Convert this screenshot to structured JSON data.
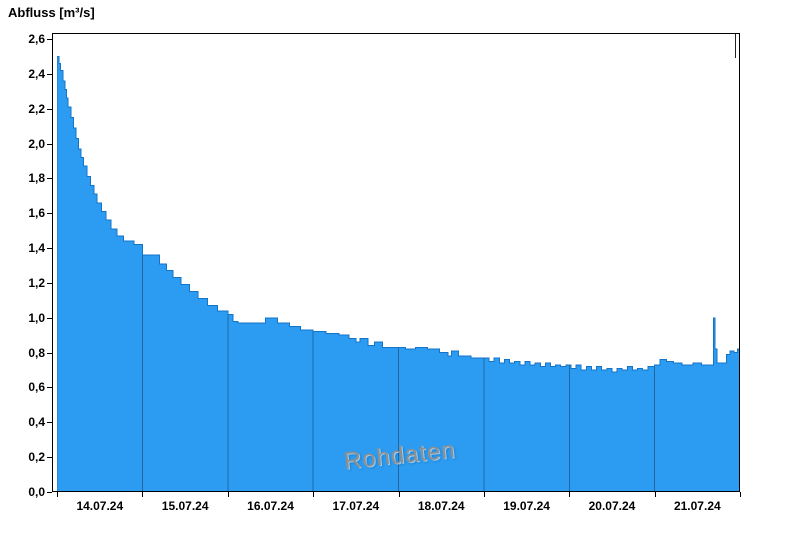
{
  "title": "Abfluss [m³/s]",
  "watermark": "Rohdaten",
  "colors": {
    "area_fill": "#2B9CF2",
    "area_stroke": "#1474C8",
    "grid_line": "rgba(28,60,95,0.55)",
    "frame": "#000000",
    "tick": "#000000",
    "watermark_text": "#8f8f8f",
    "label_text": "#000000"
  },
  "chart_data": {
    "type": "area",
    "title": "Abfluss [m³/s]",
    "ylabel": "Abfluss [m³/s]",
    "xlabel": "",
    "legend_position": "none",
    "grid": "vertical day-boundary lines visible inside filled area",
    "ylim": [
      0.0,
      2.6
    ],
    "y_ticks": [
      {
        "value": 0.0,
        "label": "0,0"
      },
      {
        "value": 0.2,
        "label": "0,2"
      },
      {
        "value": 0.4,
        "label": "0,4"
      },
      {
        "value": 0.6,
        "label": "0,6"
      },
      {
        "value": 0.8,
        "label": "0,8"
      },
      {
        "value": 1.0,
        "label": "1,0"
      },
      {
        "value": 1.2,
        "label": "1,2"
      },
      {
        "value": 1.4,
        "label": "1,4"
      },
      {
        "value": 1.6,
        "label": "1,6"
      },
      {
        "value": 1.8,
        "label": "1,8"
      },
      {
        "value": 2.0,
        "label": "2,0"
      },
      {
        "value": 2.2,
        "label": "2,2"
      },
      {
        "value": 2.4,
        "label": "2,4"
      },
      {
        "value": 2.6,
        "label": "2,6"
      }
    ],
    "x_domain_days": [
      -0.06,
      8.0
    ],
    "day_boundaries": [
      0,
      1,
      2,
      3,
      4,
      5,
      6,
      7,
      8
    ],
    "end_marker_day": 7.94,
    "x_ticks": [
      {
        "center_day": 0.5,
        "label": "14.07.24"
      },
      {
        "center_day": 1.5,
        "label": "15.07.24"
      },
      {
        "center_day": 2.5,
        "label": "16.07.24"
      },
      {
        "center_day": 3.5,
        "label": "17.07.24"
      },
      {
        "center_day": 4.5,
        "label": "18.07.24"
      },
      {
        "center_day": 5.5,
        "label": "19.07.24"
      },
      {
        "center_day": 6.5,
        "label": "20.07.24"
      },
      {
        "center_day": 7.5,
        "label": "21.07.24"
      }
    ],
    "series": [
      {
        "name": "Rohdaten",
        "unit": "m³/s",
        "points": [
          [
            0.0,
            2.5
          ],
          [
            0.02,
            2.46
          ],
          [
            0.04,
            2.42
          ],
          [
            0.07,
            2.36
          ],
          [
            0.09,
            2.31
          ],
          [
            0.11,
            2.26
          ],
          [
            0.13,
            2.21
          ],
          [
            0.16,
            2.15
          ],
          [
            0.19,
            2.09
          ],
          [
            0.22,
            2.03
          ],
          [
            0.25,
            1.97
          ],
          [
            0.28,
            1.92
          ],
          [
            0.31,
            1.87
          ],
          [
            0.35,
            1.81
          ],
          [
            0.39,
            1.76
          ],
          [
            0.43,
            1.71
          ],
          [
            0.47,
            1.66
          ],
          [
            0.52,
            1.61
          ],
          [
            0.57,
            1.56
          ],
          [
            0.63,
            1.51
          ],
          [
            0.7,
            1.47
          ],
          [
            0.78,
            1.44
          ],
          [
            0.9,
            1.42
          ],
          [
            1.0,
            1.36
          ],
          [
            1.16,
            1.36
          ],
          [
            1.2,
            1.31
          ],
          [
            1.28,
            1.27
          ],
          [
            1.36,
            1.23
          ],
          [
            1.45,
            1.19
          ],
          [
            1.55,
            1.15
          ],
          [
            1.65,
            1.11
          ],
          [
            1.76,
            1.07
          ],
          [
            1.88,
            1.04
          ],
          [
            2.0,
            1.02
          ],
          [
            2.06,
            0.98
          ],
          [
            2.12,
            0.97
          ],
          [
            2.44,
            1.0
          ],
          [
            2.58,
            0.97
          ],
          [
            2.72,
            0.95
          ],
          [
            2.85,
            0.93
          ],
          [
            3.0,
            0.92
          ],
          [
            3.15,
            0.91
          ],
          [
            3.3,
            0.9
          ],
          [
            3.42,
            0.88
          ],
          [
            3.5,
            0.86
          ],
          [
            3.55,
            0.88
          ],
          [
            3.64,
            0.84
          ],
          [
            3.72,
            0.86
          ],
          [
            3.81,
            0.83
          ],
          [
            4.0,
            0.83
          ],
          [
            4.08,
            0.82
          ],
          [
            4.2,
            0.83
          ],
          [
            4.34,
            0.82
          ],
          [
            4.48,
            0.8
          ],
          [
            4.58,
            0.78
          ],
          [
            4.62,
            0.81
          ],
          [
            4.7,
            0.78
          ],
          [
            4.85,
            0.77
          ],
          [
            5.0,
            0.77
          ],
          [
            5.06,
            0.75
          ],
          [
            5.12,
            0.77
          ],
          [
            5.18,
            0.74
          ],
          [
            5.24,
            0.76
          ],
          [
            5.3,
            0.74
          ],
          [
            5.36,
            0.75
          ],
          [
            5.42,
            0.73
          ],
          [
            5.48,
            0.75
          ],
          [
            5.54,
            0.73
          ],
          [
            5.6,
            0.74
          ],
          [
            5.66,
            0.72
          ],
          [
            5.72,
            0.74
          ],
          [
            5.78,
            0.72
          ],
          [
            5.84,
            0.73
          ],
          [
            5.9,
            0.72
          ],
          [
            5.96,
            0.73
          ],
          [
            6.02,
            0.71
          ],
          [
            6.08,
            0.73
          ],
          [
            6.14,
            0.7
          ],
          [
            6.2,
            0.72
          ],
          [
            6.26,
            0.7
          ],
          [
            6.32,
            0.72
          ],
          [
            6.38,
            0.7
          ],
          [
            6.44,
            0.71
          ],
          [
            6.5,
            0.69
          ],
          [
            6.56,
            0.71
          ],
          [
            6.62,
            0.7
          ],
          [
            6.68,
            0.72
          ],
          [
            6.74,
            0.7
          ],
          [
            6.8,
            0.71
          ],
          [
            6.86,
            0.7
          ],
          [
            6.92,
            0.72
          ],
          [
            7.0,
            0.73
          ],
          [
            7.06,
            0.76
          ],
          [
            7.14,
            0.75
          ],
          [
            7.22,
            0.74
          ],
          [
            7.32,
            0.73
          ],
          [
            7.45,
            0.74
          ],
          [
            7.55,
            0.73
          ],
          [
            7.66,
            0.73
          ],
          [
            7.69,
            1.0
          ],
          [
            7.71,
            0.82
          ],
          [
            7.73,
            0.74
          ],
          [
            7.8,
            0.74
          ],
          [
            7.84,
            0.79
          ],
          [
            7.88,
            0.81
          ],
          [
            7.93,
            0.8
          ],
          [
            7.97,
            0.82
          ]
        ]
      }
    ]
  }
}
